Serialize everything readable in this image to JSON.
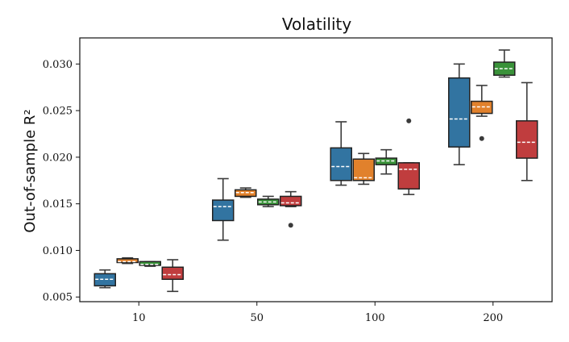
{
  "chart_data": {
    "type": "boxplot",
    "title": "Volatility",
    "xlabel": "",
    "ylabel": "Out-of-sample R²",
    "ylim": [
      0.0045,
      0.0328
    ],
    "yticks": [
      0.005,
      0.01,
      0.015,
      0.02,
      0.025,
      0.03
    ],
    "ytick_labels": [
      "0.005",
      "0.010",
      "0.015",
      "0.020",
      "0.025",
      "0.030"
    ],
    "categories": [
      "10",
      "50",
      "100",
      "200"
    ],
    "series": [
      {
        "name": "blue",
        "color": "#3274a1",
        "values": [
          {
            "min": 0.006,
            "q1": 0.0062,
            "median": 0.0069,
            "q3": 0.0075,
            "max": 0.0079,
            "outliers": []
          },
          {
            "min": 0.0111,
            "q1": 0.0132,
            "median": 0.0147,
            "q3": 0.0154,
            "max": 0.0177,
            "outliers": []
          },
          {
            "min": 0.017,
            "q1": 0.0175,
            "median": 0.019,
            "q3": 0.021,
            "max": 0.0238,
            "outliers": []
          },
          {
            "min": 0.0192,
            "q1": 0.0211,
            "median": 0.0241,
            "q3": 0.0285,
            "max": 0.03,
            "outliers": []
          }
        ]
      },
      {
        "name": "orange",
        "color": "#e1812c",
        "values": [
          {
            "min": 0.0086,
            "q1": 0.0087,
            "median": 0.0088,
            "q3": 0.0091,
            "max": 0.0092,
            "outliers": []
          },
          {
            "min": 0.0157,
            "q1": 0.0158,
            "median": 0.0162,
            "q3": 0.0165,
            "max": 0.0167,
            "outliers": []
          },
          {
            "min": 0.0171,
            "q1": 0.0175,
            "median": 0.0178,
            "q3": 0.0198,
            "max": 0.0204,
            "outliers": []
          },
          {
            "min": 0.0244,
            "q1": 0.0247,
            "median": 0.0254,
            "q3": 0.026,
            "max": 0.0277,
            "outliers": [
              0.022
            ]
          }
        ]
      },
      {
        "name": "green",
        "color": "#3a923a",
        "values": [
          {
            "min": 0.0083,
            "q1": 0.0084,
            "median": 0.0085,
            "q3": 0.0088,
            "max": 0.0088,
            "outliers": []
          },
          {
            "min": 0.0147,
            "q1": 0.0149,
            "median": 0.0152,
            "q3": 0.0155,
            "max": 0.0158,
            "outliers": []
          },
          {
            "min": 0.0182,
            "q1": 0.0192,
            "median": 0.0196,
            "q3": 0.0199,
            "max": 0.0208,
            "outliers": []
          },
          {
            "min": 0.0286,
            "q1": 0.0288,
            "median": 0.0295,
            "q3": 0.0302,
            "max": 0.0315,
            "outliers": []
          }
        ]
      },
      {
        "name": "red",
        "color": "#c03d3e",
        "values": [
          {
            "min": 0.0056,
            "q1": 0.0069,
            "median": 0.0074,
            "q3": 0.0082,
            "max": 0.009,
            "outliers": []
          },
          {
            "min": 0.0147,
            "q1": 0.0148,
            "median": 0.0151,
            "q3": 0.0158,
            "max": 0.0163,
            "outliers": [
              0.0127
            ]
          },
          {
            "min": 0.016,
            "q1": 0.0166,
            "median": 0.0187,
            "q3": 0.0194,
            "max": 0.0194,
            "outliers": [
              0.0239
            ]
          },
          {
            "min": 0.0175,
            "q1": 0.0199,
            "median": 0.0216,
            "q3": 0.0239,
            "max": 0.028,
            "outliers": []
          }
        ]
      }
    ],
    "median_line_style": "dashed-white",
    "grid": false,
    "legend": "none"
  }
}
